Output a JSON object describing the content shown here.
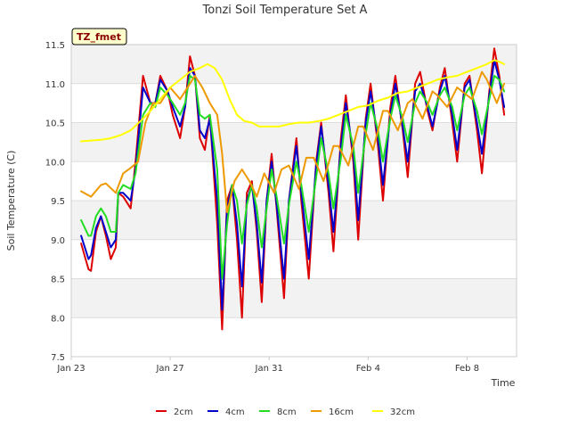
{
  "chart_data": {
    "type": "line",
    "title": "Tonzi Soil Temperature Set A",
    "xlabel": "Time",
    "ylabel": "Soil Temperature (C)",
    "badge": "TZ_fmet",
    "xlim": [
      0,
      18
    ],
    "ylim": [
      7.5,
      11.5
    ],
    "y_ticks": [
      7.5,
      8.0,
      8.5,
      9.0,
      9.5,
      10.0,
      10.5,
      11.0,
      11.5
    ],
    "y_tick_labels": [
      "7.5",
      "8.0",
      "8.5",
      "9.0",
      "9.5",
      "10.0",
      "10.5",
      "11.0",
      "11.5"
    ],
    "x_ticks": [
      0,
      4,
      8,
      12,
      16
    ],
    "x_tick_labels": [
      "Jan 23",
      "Jan 27",
      "Jan 31",
      "Feb 4",
      "Feb 8"
    ],
    "x_units": "days since Jan 23",
    "grid": "horizontal",
    "legend_position": "bottom",
    "series": [
      {
        "name": "2cm",
        "color": "#dd0000",
        "x": [
          0.4,
          0.7,
          0.8,
          1.0,
          1.2,
          1.4,
          1.6,
          1.8,
          1.9,
          2.1,
          2.4,
          2.6,
          2.9,
          3.2,
          3.4,
          3.6,
          3.9,
          4.1,
          4.4,
          4.6,
          4.8,
          5.0,
          5.2,
          5.4,
          5.6,
          5.9,
          6.1,
          6.3,
          6.5,
          6.7,
          6.9,
          7.1,
          7.3,
          7.5,
          7.7,
          7.9,
          8.1,
          8.3,
          8.6,
          8.8,
          9.1,
          9.3,
          9.6,
          9.9,
          10.1,
          10.4,
          10.6,
          10.9,
          11.1,
          11.4,
          11.6,
          11.9,
          12.1,
          12.4,
          12.6,
          12.9,
          13.1,
          13.4,
          13.6,
          13.9,
          14.1,
          14.4,
          14.6,
          14.9,
          15.1,
          15.4,
          15.6,
          15.9,
          16.1,
          16.4,
          16.6,
          16.9,
          17.1,
          17.3,
          17.5
        ],
        "values": [
          8.95,
          8.62,
          8.6,
          9.1,
          9.3,
          9.05,
          8.75,
          8.9,
          9.6,
          9.55,
          9.4,
          10.0,
          11.1,
          10.75,
          10.75,
          11.1,
          10.9,
          10.6,
          10.3,
          10.7,
          11.35,
          11.1,
          10.3,
          10.15,
          10.6,
          9.2,
          7.85,
          9.5,
          9.7,
          9.0,
          8.0,
          9.6,
          9.75,
          9.1,
          8.2,
          9.5,
          10.1,
          9.4,
          8.25,
          9.5,
          10.3,
          9.5,
          8.5,
          10.0,
          10.5,
          9.6,
          8.85,
          10.3,
          10.85,
          10.0,
          9.0,
          10.55,
          11.0,
          10.2,
          9.5,
          10.7,
          11.1,
          10.4,
          9.8,
          11.0,
          11.15,
          10.65,
          10.4,
          10.95,
          11.2,
          10.5,
          10.0,
          11.0,
          11.1,
          10.4,
          9.85,
          10.9,
          11.45,
          11.1,
          10.6
        ]
      },
      {
        "name": "4cm",
        "color": "#0000cc",
        "x": [
          0.4,
          0.7,
          0.8,
          1.0,
          1.2,
          1.4,
          1.6,
          1.8,
          1.9,
          2.1,
          2.4,
          2.6,
          2.9,
          3.2,
          3.4,
          3.6,
          3.9,
          4.1,
          4.4,
          4.6,
          4.8,
          5.0,
          5.2,
          5.4,
          5.6,
          5.9,
          6.1,
          6.3,
          6.5,
          6.7,
          6.9,
          7.1,
          7.3,
          7.5,
          7.7,
          7.9,
          8.1,
          8.3,
          8.6,
          8.8,
          9.1,
          9.3,
          9.6,
          9.9,
          10.1,
          10.4,
          10.6,
          10.9,
          11.1,
          11.4,
          11.6,
          11.9,
          12.1,
          12.4,
          12.6,
          12.9,
          13.1,
          13.4,
          13.6,
          13.9,
          14.1,
          14.4,
          14.6,
          14.9,
          15.1,
          15.4,
          15.6,
          15.9,
          16.1,
          16.4,
          16.6,
          16.9,
          17.1,
          17.3,
          17.5
        ],
        "values": [
          9.05,
          8.75,
          8.8,
          9.15,
          9.3,
          9.1,
          8.9,
          9.0,
          9.6,
          9.6,
          9.5,
          9.9,
          10.95,
          10.75,
          10.75,
          11.05,
          10.9,
          10.7,
          10.45,
          10.7,
          11.2,
          11.1,
          10.4,
          10.3,
          10.55,
          9.5,
          8.1,
          9.4,
          9.7,
          9.2,
          8.4,
          9.5,
          9.7,
          9.2,
          8.45,
          9.5,
          10.0,
          9.45,
          8.5,
          9.5,
          10.2,
          9.6,
          8.75,
          9.95,
          10.45,
          9.7,
          9.1,
          10.2,
          10.75,
          10.1,
          9.25,
          10.5,
          10.9,
          10.3,
          9.7,
          10.6,
          11.0,
          10.45,
          10.0,
          10.9,
          11.0,
          10.7,
          10.45,
          10.9,
          11.1,
          10.6,
          10.15,
          10.95,
          11.05,
          10.5,
          10.1,
          10.85,
          11.3,
          11.05,
          10.7
        ]
      },
      {
        "name": "8cm",
        "color": "#22dd22",
        "x": [
          0.4,
          0.7,
          0.8,
          1.0,
          1.2,
          1.4,
          1.6,
          1.8,
          1.9,
          2.1,
          2.4,
          2.6,
          2.9,
          3.2,
          3.4,
          3.6,
          3.9,
          4.1,
          4.4,
          4.6,
          4.8,
          5.0,
          5.2,
          5.4,
          5.6,
          5.9,
          6.1,
          6.3,
          6.5,
          6.7,
          6.9,
          7.1,
          7.3,
          7.5,
          7.7,
          7.9,
          8.1,
          8.3,
          8.6,
          8.8,
          9.1,
          9.3,
          9.6,
          9.9,
          10.1,
          10.4,
          10.6,
          10.9,
          11.1,
          11.4,
          11.6,
          11.9,
          12.1,
          12.4,
          12.6,
          12.9,
          13.1,
          13.4,
          13.6,
          13.9,
          14.1,
          14.4,
          14.6,
          14.9,
          15.1,
          15.4,
          15.6,
          15.9,
          16.1,
          16.4,
          16.6,
          16.9,
          17.1,
          17.3,
          17.5
        ],
        "values": [
          9.25,
          9.05,
          9.05,
          9.3,
          9.4,
          9.3,
          9.1,
          9.1,
          9.6,
          9.7,
          9.65,
          9.85,
          10.6,
          10.75,
          10.7,
          10.95,
          10.85,
          10.75,
          10.6,
          10.75,
          11.1,
          11.05,
          10.6,
          10.55,
          10.6,
          9.9,
          8.5,
          9.2,
          9.7,
          9.5,
          8.95,
          9.45,
          9.7,
          9.4,
          8.9,
          9.4,
          9.9,
          9.55,
          8.95,
          9.45,
          10.0,
          9.7,
          9.1,
          9.8,
          10.3,
          9.85,
          9.4,
          10.05,
          10.6,
          10.2,
          9.6,
          10.35,
          10.75,
          10.4,
          10.0,
          10.55,
          10.85,
          10.55,
          10.25,
          10.75,
          10.9,
          10.75,
          10.6,
          10.85,
          10.95,
          10.7,
          10.4,
          10.85,
          10.95,
          10.65,
          10.35,
          10.8,
          11.1,
          11.05,
          10.9
        ]
      },
      {
        "name": "16cm",
        "color": "#ee9900",
        "x": [
          0.4,
          0.8,
          1.2,
          1.4,
          1.8,
          2.1,
          2.4,
          2.7,
          3.0,
          3.3,
          3.6,
          4.0,
          4.4,
          4.7,
          5.0,
          5.3,
          5.6,
          5.9,
          6.1,
          6.3,
          6.6,
          6.9,
          7.2,
          7.5,
          7.8,
          8.2,
          8.5,
          8.8,
          9.2,
          9.5,
          9.8,
          10.2,
          10.6,
          10.8,
          11.2,
          11.6,
          11.8,
          12.2,
          12.6,
          12.8,
          13.2,
          13.6,
          13.8,
          14.2,
          14.6,
          14.8,
          15.2,
          15.6,
          15.8,
          16.2,
          16.6,
          16.8,
          17.2,
          17.5
        ],
        "values": [
          9.62,
          9.55,
          9.7,
          9.72,
          9.6,
          9.85,
          9.92,
          10.0,
          10.5,
          10.75,
          10.75,
          10.95,
          10.8,
          10.95,
          11.1,
          10.95,
          10.75,
          10.6,
          10.1,
          9.35,
          9.75,
          9.9,
          9.75,
          9.55,
          9.85,
          9.6,
          9.9,
          9.95,
          9.65,
          10.05,
          10.05,
          9.75,
          10.2,
          10.2,
          9.95,
          10.45,
          10.45,
          10.15,
          10.65,
          10.65,
          10.4,
          10.75,
          10.8,
          10.55,
          10.9,
          10.85,
          10.7,
          10.95,
          10.9,
          10.8,
          11.15,
          11.05,
          10.75,
          11.0
        ]
      },
      {
        "name": "32cm",
        "color": "#ffff00",
        "x": [
          0.4,
          0.8,
          1.2,
          1.6,
          2.0,
          2.4,
          2.8,
          3.2,
          3.6,
          4.0,
          4.4,
          4.8,
          5.2,
          5.5,
          5.8,
          6.1,
          6.4,
          6.7,
          7.0,
          7.3,
          7.6,
          8.0,
          8.4,
          8.8,
          9.2,
          9.6,
          10.0,
          10.4,
          10.8,
          11.2,
          11.6,
          12.0,
          12.4,
          12.8,
          13.2,
          13.6,
          14.0,
          14.4,
          14.8,
          15.2,
          15.6,
          16.0,
          16.4,
          16.8,
          17.1,
          17.3,
          17.5
        ],
        "values": [
          10.26,
          10.27,
          10.28,
          10.3,
          10.34,
          10.4,
          10.52,
          10.65,
          10.8,
          10.95,
          11.05,
          11.15,
          11.2,
          11.25,
          11.2,
          11.05,
          10.8,
          10.6,
          10.52,
          10.5,
          10.45,
          10.45,
          10.45,
          10.48,
          10.5,
          10.5,
          10.52,
          10.55,
          10.6,
          10.65,
          10.7,
          10.72,
          10.78,
          10.82,
          10.88,
          10.9,
          10.95,
          11.0,
          11.05,
          11.08,
          11.1,
          11.15,
          11.2,
          11.25,
          11.3,
          11.28,
          11.25
        ]
      }
    ]
  }
}
